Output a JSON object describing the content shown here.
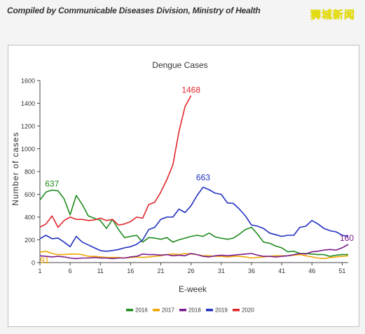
{
  "header": {
    "source_note": "Compiled by Communicable Diseases Division, Ministry of Health",
    "watermark": "狮城新闻"
  },
  "chart_data": {
    "type": "line",
    "title": "Dengue Cases",
    "xlabel": "E-week",
    "ylabel": "Number of cases",
    "xlim": [
      1,
      52
    ],
    "ylim": [
      0,
      1600
    ],
    "x_ticks": [
      1,
      6,
      11,
      16,
      21,
      26,
      31,
      36,
      41,
      46,
      51
    ],
    "y_ticks": [
      0,
      200,
      400,
      600,
      800,
      1000,
      1200,
      1400,
      1600
    ],
    "grid": false,
    "legend_position": "bottom",
    "series": [
      {
        "name": "2016",
        "color": "#1e8a1e",
        "x": [
          1,
          2,
          3,
          4,
          5,
          6,
          7,
          8,
          9,
          10,
          11,
          12,
          13,
          14,
          15,
          16,
          17,
          18,
          19,
          20,
          21,
          22,
          23,
          24,
          25,
          26,
          27,
          28,
          29,
          30,
          31,
          32,
          33,
          34,
          35,
          36,
          37,
          38,
          39,
          40,
          41,
          42,
          43,
          44,
          45,
          46,
          47,
          48,
          49,
          50,
          51,
          52
        ],
        "values": [
          550,
          620,
          637,
          630,
          560,
          420,
          590,
          510,
          410,
          390,
          370,
          300,
          380,
          290,
          220,
          230,
          240,
          180,
          220,
          215,
          205,
          220,
          180,
          200,
          215,
          230,
          240,
          230,
          260,
          225,
          215,
          205,
          215,
          250,
          290,
          310,
          250,
          180,
          170,
          145,
          130,
          95,
          100,
          80,
          80,
          75,
          70,
          70,
          55,
          65,
          70,
          70
        ],
        "annotation": {
          "x": 3,
          "value": 637,
          "label": "637"
        }
      },
      {
        "name": "2017",
        "color": "#f0a500",
        "x": [
          1,
          2,
          3,
          4,
          5,
          6,
          7,
          8,
          9,
          10,
          11,
          12,
          13,
          14,
          15,
          16,
          17,
          18,
          19,
          20,
          21,
          22,
          23,
          24,
          25,
          26,
          27,
          28,
          29,
          30,
          31,
          32,
          33,
          34,
          35,
          36,
          37,
          38,
          39,
          40,
          41,
          42,
          43,
          44,
          45,
          46,
          47,
          48,
          49,
          50,
          51,
          52
        ],
        "values": [
          91,
          100,
          80,
          70,
          70,
          75,
          75,
          70,
          55,
          55,
          50,
          45,
          45,
          45,
          40,
          45,
          50,
          45,
          50,
          55,
          60,
          70,
          75,
          70,
          80,
          75,
          70,
          60,
          60,
          55,
          55,
          50,
          55,
          55,
          50,
          40,
          45,
          50,
          55,
          60,
          60,
          60,
          65,
          70,
          60,
          50,
          40,
          35,
          45,
          50,
          55,
          60
        ],
        "annotation": {
          "x": 1,
          "value": 91,
          "label": "91"
        }
      },
      {
        "name": "2018",
        "color": "#7a1a8a",
        "x": [
          1,
          2,
          3,
          4,
          5,
          6,
          7,
          8,
          9,
          10,
          11,
          12,
          13,
          14,
          15,
          16,
          17,
          18,
          19,
          20,
          21,
          22,
          23,
          24,
          25,
          26,
          27,
          28,
          29,
          30,
          31,
          32,
          33,
          34,
          35,
          36,
          37,
          38,
          39,
          40,
          41,
          42,
          43,
          44,
          45,
          46,
          47,
          48,
          49,
          50,
          51,
          52
        ],
        "values": [
          60,
          55,
          50,
          55,
          50,
          40,
          35,
          40,
          40,
          45,
          40,
          40,
          35,
          40,
          40,
          50,
          55,
          75,
          70,
          70,
          65,
          70,
          60,
          65,
          60,
          80,
          70,
          55,
          50,
          60,
          65,
          60,
          65,
          70,
          75,
          80,
          65,
          55,
          55,
          50,
          55,
          60,
          70,
          80,
          75,
          95,
          100,
          110,
          115,
          110,
          130,
          160
        ],
        "annotation": {
          "x": 52,
          "value": 160,
          "label": "160"
        }
      },
      {
        "name": "2019",
        "color": "#1f2fbf",
        "x": [
          1,
          2,
          3,
          4,
          5,
          6,
          7,
          8,
          9,
          10,
          11,
          12,
          13,
          14,
          15,
          16,
          17,
          18,
          19,
          20,
          21,
          22,
          23,
          24,
          25,
          26,
          27,
          28,
          29,
          30,
          31,
          32,
          33,
          34,
          35,
          36,
          37,
          38,
          39,
          40,
          41,
          42,
          43,
          44,
          45,
          46,
          47,
          48,
          49,
          50,
          51,
          52
        ],
        "values": [
          210,
          240,
          210,
          215,
          180,
          140,
          230,
          180,
          155,
          130,
          105,
          100,
          105,
          115,
          130,
          140,
          160,
          200,
          290,
          310,
          380,
          400,
          400,
          470,
          440,
          500,
          590,
          663,
          640,
          610,
          600,
          525,
          520,
          470,
          410,
          330,
          320,
          300,
          260,
          245,
          230,
          240,
          240,
          310,
          320,
          370,
          340,
          300,
          280,
          270,
          240,
          230
        ],
        "annotation": {
          "x": 28,
          "value": 663,
          "label": "663"
        }
      },
      {
        "name": "2020",
        "color": "#e0252a",
        "x": [
          1,
          2,
          3,
          4,
          5,
          6,
          7,
          8,
          9,
          10,
          11,
          12,
          13,
          14,
          15,
          16,
          17,
          18,
          19,
          20,
          21,
          22,
          23,
          24,
          25,
          26
        ],
        "values": [
          310,
          340,
          410,
          310,
          370,
          400,
          380,
          380,
          370,
          375,
          390,
          370,
          380,
          330,
          340,
          360,
          400,
          390,
          510,
          530,
          620,
          730,
          860,
          1150,
          1370,
          1468
        ],
        "annotation": {
          "x": 26,
          "value": 1468,
          "label": "1468"
        }
      }
    ]
  }
}
